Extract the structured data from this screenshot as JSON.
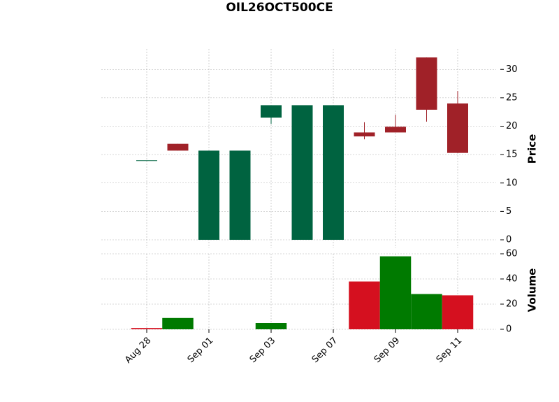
{
  "chart_data": {
    "type": "candlestick",
    "title": "OIL26OCT500CE",
    "categories": [
      "Aug 28",
      null,
      "Sep 01",
      null,
      "Sep 03",
      null,
      "Sep 07",
      null,
      "Sep 09",
      null,
      "Sep 11"
    ],
    "open": [
      14.0,
      16.9,
      0,
      0,
      21.5,
      0,
      0,
      18.9,
      19.9,
      32.1,
      24.0
    ],
    "high": [
      14.0,
      16.9,
      15.7,
      15.7,
      23.7,
      23.7,
      23.7,
      20.7,
      22.0,
      32.1,
      26.2
    ],
    "low": [
      14.0,
      15.7,
      0,
      0,
      20.4,
      0,
      0,
      17.7,
      18.9,
      20.8,
      15.3
    ],
    "close": [
      14.0,
      15.7,
      15.7,
      15.7,
      23.7,
      23.7,
      23.7,
      18.2,
      18.9,
      22.9,
      15.3
    ],
    "up_color": "#006340",
    "down_color": "#a02128",
    "ylabel": "Price",
    "ylim": [
      0,
      33.6
    ],
    "yticks": [
      0,
      5,
      10,
      15,
      20,
      25,
      30
    ],
    "grid": true,
    "volume": {
      "ylabel": "Volume",
      "values": [
        1,
        9,
        0,
        0,
        5,
        0,
        0,
        38,
        58,
        28,
        27
      ],
      "colors": [
        "#d5101f",
        "#007a00",
        "#007a00",
        "#007a00",
        "#007a00",
        "#007a00",
        "#007a00",
        "#d5101f",
        "#007a00",
        "#007a00",
        "#d5101f"
      ],
      "ylim": [
        0,
        60
      ],
      "yticks": [
        0,
        20,
        40,
        60
      ]
    }
  }
}
